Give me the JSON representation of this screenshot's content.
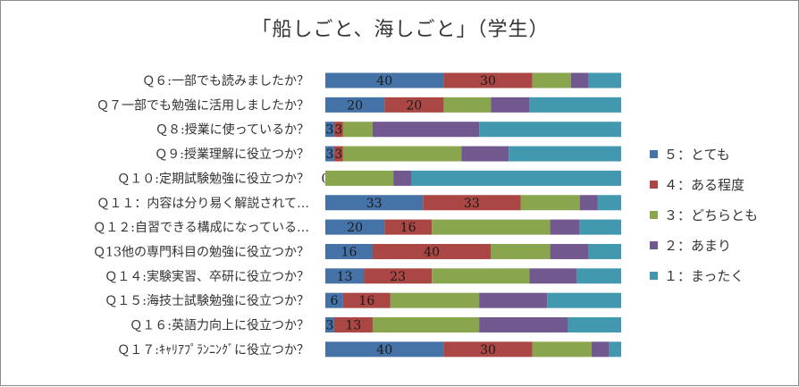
{
  "chart_data": {
    "type": "bar",
    "stacked": true,
    "orientation": "horizontal",
    "normalized": true,
    "title": "「船しごと、海しごと」（学生）",
    "categories": [
      "Ｑ６:一部でも読みましたか？",
      "Ｑ７一部でも勉強に活用しましたか？",
      "Ｑ８:授業に使っているか？",
      "Ｑ９:授業理解に役立つか？",
      "Ｑ１０:定期試験勉強に役立つか？",
      "Ｑ１１：内容は分り易く解説されて…",
      "Ｑ１２:自習できる構成になっている…",
      "Ｑ13他の専門科目の勉強に役立つか？",
      "Ｑ１４:実験実習、卒研に役立つか？",
      "Ｑ１５:海技士試験勉強に役立つか？",
      "Ｑ１６:英語力向上に役立つか？",
      "Ｑ１７:ｷｬﾘｱﾌﾟﾗﾝﾆﾝｸﾞに役立つか？"
    ],
    "series": [
      {
        "name": "５：とても",
        "color": "#4572a7",
        "values": [
          40,
          20,
          3,
          3,
          0,
          33,
          20,
          16,
          13,
          6,
          3,
          40
        ]
      },
      {
        "name": "４：ある程度",
        "color": "#aa4643",
        "values": [
          30,
          20,
          3,
          3,
          0,
          33,
          16,
          40,
          23,
          16,
          13,
          30
        ]
      },
      {
        "name": "３：どちらとも",
        "color": "#89a54e",
        "values": [
          13,
          16,
          10,
          40,
          23,
          20,
          40,
          20,
          33,
          30,
          36,
          20
        ]
      },
      {
        "name": "２：あまり",
        "color": "#71588f",
        "values": [
          6,
          13,
          36,
          16,
          6,
          6,
          10,
          13,
          16,
          23,
          30,
          6
        ]
      },
      {
        "name": "１：まったく",
        "color": "#4198af",
        "values": [
          11,
          31,
          48,
          38,
          71,
          8,
          14,
          11,
          15,
          25,
          18,
          4
        ]
      }
    ],
    "data_labels": [
      [
        "40",
        "30",
        "",
        "",
        ""
      ],
      [
        "20",
        "20",
        "",
        "",
        ""
      ],
      [
        "3",
        "3",
        "",
        "",
        ""
      ],
      [
        "3",
        "3",
        "",
        "",
        ""
      ],
      [
        "0",
        "",
        "",
        "",
        ""
      ],
      [
        "33",
        "33",
        "",
        "",
        ""
      ],
      [
        "20",
        "16",
        "",
        "",
        ""
      ],
      [
        "16",
        "40",
        "",
        "",
        ""
      ],
      [
        "13",
        "23",
        "",
        "",
        ""
      ],
      [
        "6",
        "16",
        "",
        "",
        ""
      ],
      [
        "3",
        "13",
        "",
        "",
        ""
      ],
      [
        "40",
        "30",
        "",
        "",
        ""
      ]
    ],
    "xlim": [
      0,
      100
    ],
    "grid": false,
    "legend": "right"
  }
}
